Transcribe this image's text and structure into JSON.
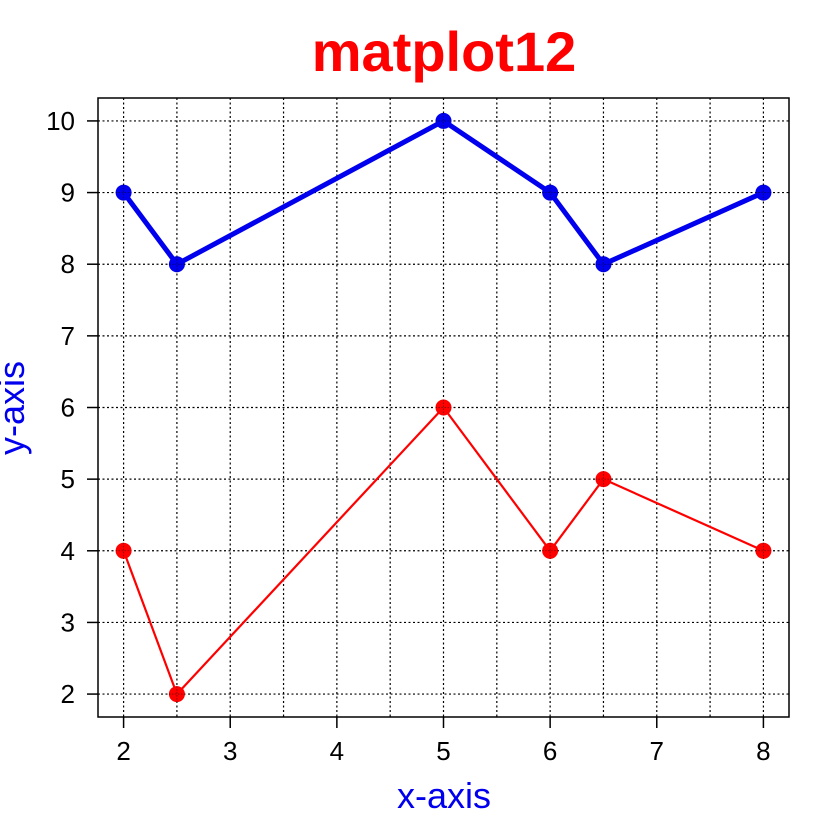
{
  "chart_data": {
    "type": "line",
    "title": "matplot12",
    "xlabel": "x-axis",
    "ylabel": "y-axis",
    "title_color": "#ff0000",
    "axis_label_color": "#0000ee",
    "x": [
      2,
      2.5,
      5,
      6,
      6.5,
      8
    ],
    "xlim": [
      1.76,
      8.24
    ],
    "ylim": [
      1.68,
      10.32
    ],
    "x_ticks": [
      2,
      3,
      4,
      5,
      6,
      7,
      8
    ],
    "y_ticks": [
      2,
      3,
      4,
      5,
      6,
      7,
      8,
      9,
      10
    ],
    "x_grid": [
      2,
      2.5,
      3,
      3.5,
      4,
      4.5,
      5,
      5.5,
      6,
      6.5,
      7,
      7.5,
      8
    ],
    "y_grid": [
      2,
      3,
      4,
      5,
      6,
      7,
      8,
      9,
      10
    ],
    "grid": true,
    "series": [
      {
        "values": [
          9,
          8,
          10,
          9,
          8,
          9
        ],
        "color": "#0000ee",
        "style": "thick"
      },
      {
        "values": [
          4,
          2,
          6,
          4,
          5,
          4
        ],
        "color": "#ff0000",
        "style": "thin"
      }
    ]
  }
}
